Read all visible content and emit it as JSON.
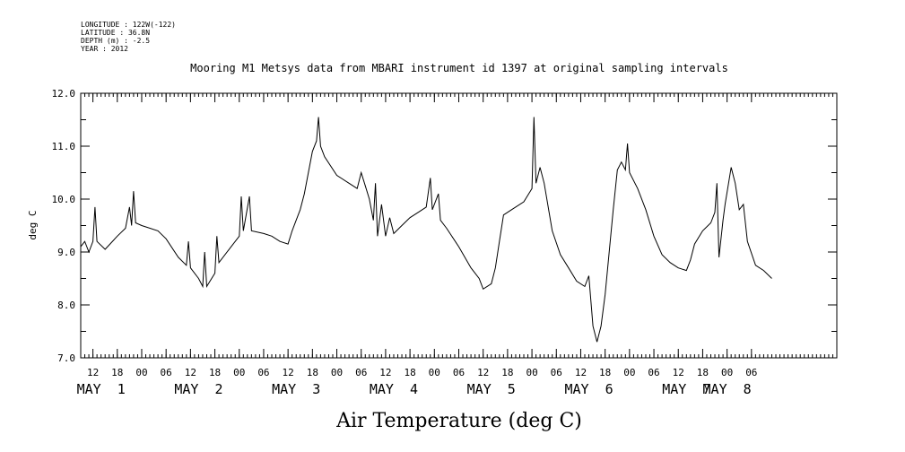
{
  "chart_data": {
    "type": "line",
    "metadata": [
      "LONGITUDE : 122W(-122)",
      "LATITUDE : 36.8N",
      "DEPTH (m) : -2.5",
      "YEAR : 2012"
    ],
    "title": "Mooring M1 Metsys data from MBARI instrument id 1397 at original sampling intervals",
    "xlabel": "Air Temperature (deg C)",
    "ylabel": "deg C",
    "ylim": [
      7.0,
      12.0
    ],
    "yticks": [
      "7.0",
      "8.0",
      "9.0",
      "10.0",
      "11.0",
      "12.0"
    ],
    "xlim": [
      "2012-04-30T09:00",
      "2012-05-08T03:00"
    ],
    "hour_ticks": [
      {
        "t": "2012-04-30T12:00",
        "label": "12"
      },
      {
        "t": "2012-04-30T18:00",
        "label": "18"
      },
      {
        "t": "2012-05-01T00:00",
        "label": "00"
      },
      {
        "t": "2012-05-01T06:00",
        "label": "06"
      },
      {
        "t": "2012-05-01T12:00",
        "label": "12"
      },
      {
        "t": "2012-05-01T18:00",
        "label": "18"
      },
      {
        "t": "2012-05-02T00:00",
        "label": "00"
      },
      {
        "t": "2012-05-02T06:00",
        "label": "06"
      },
      {
        "t": "2012-05-02T12:00",
        "label": "12"
      },
      {
        "t": "2012-05-02T18:00",
        "label": "18"
      },
      {
        "t": "2012-05-03T00:00",
        "label": "00"
      },
      {
        "t": "2012-05-03T06:00",
        "label": "06"
      },
      {
        "t": "2012-05-03T12:00",
        "label": "12"
      },
      {
        "t": "2012-05-03T18:00",
        "label": "18"
      },
      {
        "t": "2012-05-04T00:00",
        "label": "00"
      },
      {
        "t": "2012-05-04T06:00",
        "label": "06"
      },
      {
        "t": "2012-05-04T12:00",
        "label": "12"
      },
      {
        "t": "2012-05-04T18:00",
        "label": "18"
      },
      {
        "t": "2012-05-05T00:00",
        "label": "00"
      },
      {
        "t": "2012-05-05T06:00",
        "label": "06"
      },
      {
        "t": "2012-05-05T12:00",
        "label": "12"
      },
      {
        "t": "2012-05-05T18:00",
        "label": "18"
      },
      {
        "t": "2012-05-06T00:00",
        "label": "00"
      },
      {
        "t": "2012-05-06T06:00",
        "label": "06"
      },
      {
        "t": "2012-05-06T12:00",
        "label": "12"
      },
      {
        "t": "2012-05-06T18:00",
        "label": "18"
      },
      {
        "t": "2012-05-07T00:00",
        "label": "00"
      },
      {
        "t": "2012-05-07T06:00",
        "label": "06"
      }
    ],
    "day_labels": [
      {
        "t": "2012-04-30T14:00",
        "label": "MAY  1"
      },
      {
        "t": "2012-05-01T14:00",
        "label": "MAY  2"
      },
      {
        "t": "2012-05-02T14:00",
        "label": "MAY  3"
      },
      {
        "t": "2012-05-03T14:00",
        "label": "MAY  4"
      },
      {
        "t": "2012-05-04T14:00",
        "label": "MAY  5"
      },
      {
        "t": "2012-05-05T14:00",
        "label": "MAY  6"
      },
      {
        "t": "2012-05-06T14:00",
        "label": "MAY  7"
      },
      {
        "t": "2012-05-07T00:00",
        "label": "MAY  8"
      }
    ],
    "series": [
      {
        "points": [
          [
            "2012-04-30T09:00",
            9.1
          ],
          [
            "2012-04-30T10:00",
            9.2
          ],
          [
            "2012-04-30T11:00",
            9.0
          ],
          [
            "2012-04-30T12:00",
            9.2
          ],
          [
            "2012-04-30T12:30",
            9.85
          ],
          [
            "2012-04-30T13:00",
            9.2
          ],
          [
            "2012-04-30T15:00",
            9.05
          ],
          [
            "2012-04-30T18:00",
            9.3
          ],
          [
            "2012-04-30T20:00",
            9.45
          ],
          [
            "2012-04-30T21:00",
            9.85
          ],
          [
            "2012-04-30T21:30",
            9.5
          ],
          [
            "2012-04-30T22:00",
            10.15
          ],
          [
            "2012-04-30T22:30",
            9.55
          ],
          [
            "2012-05-01T00:00",
            9.5
          ],
          [
            "2012-05-01T04:00",
            9.4
          ],
          [
            "2012-05-01T06:00",
            9.25
          ],
          [
            "2012-05-01T09:00",
            8.9
          ],
          [
            "2012-05-01T11:00",
            8.75
          ],
          [
            "2012-05-01T11:30",
            9.2
          ],
          [
            "2012-05-01T12:00",
            8.7
          ],
          [
            "2012-05-01T14:00",
            8.5
          ],
          [
            "2012-05-01T15:00",
            8.35
          ],
          [
            "2012-05-01T15:30",
            9.0
          ],
          [
            "2012-05-01T16:00",
            8.35
          ],
          [
            "2012-05-01T18:00",
            8.6
          ],
          [
            "2012-05-01T18:30",
            9.3
          ],
          [
            "2012-05-01T19:00",
            8.8
          ],
          [
            "2012-05-01T22:00",
            9.1
          ],
          [
            "2012-05-02T00:00",
            9.3
          ],
          [
            "2012-05-02T00:30",
            10.05
          ],
          [
            "2012-05-02T01:00",
            9.4
          ],
          [
            "2012-05-02T02:30",
            10.05
          ],
          [
            "2012-05-02T03:00",
            9.4
          ],
          [
            "2012-05-02T06:00",
            9.35
          ],
          [
            "2012-05-02T08:00",
            9.3
          ],
          [
            "2012-05-02T10:00",
            9.2
          ],
          [
            "2012-05-02T12:00",
            9.15
          ],
          [
            "2012-05-02T13:00",
            9.4
          ],
          [
            "2012-05-02T14:00",
            9.6
          ],
          [
            "2012-05-02T15:00",
            9.8
          ],
          [
            "2012-05-02T16:00",
            10.1
          ],
          [
            "2012-05-02T17:00",
            10.5
          ],
          [
            "2012-05-02T18:00",
            10.9
          ],
          [
            "2012-05-02T19:00",
            11.1
          ],
          [
            "2012-05-02T19:30",
            11.55
          ],
          [
            "2012-05-02T20:00",
            11.0
          ],
          [
            "2012-05-02T21:00",
            10.8
          ],
          [
            "2012-05-03T00:00",
            10.45
          ],
          [
            "2012-05-03T03:00",
            10.3
          ],
          [
            "2012-05-03T05:00",
            10.2
          ],
          [
            "2012-05-03T06:00",
            10.5
          ],
          [
            "2012-05-03T07:00",
            10.25
          ],
          [
            "2012-05-03T08:00",
            10.0
          ],
          [
            "2012-05-03T09:00",
            9.6
          ],
          [
            "2012-05-03T09:30",
            10.3
          ],
          [
            "2012-05-03T10:00",
            9.3
          ],
          [
            "2012-05-03T11:00",
            9.9
          ],
          [
            "2012-05-03T12:00",
            9.3
          ],
          [
            "2012-05-03T13:00",
            9.65
          ],
          [
            "2012-05-03T14:00",
            9.35
          ],
          [
            "2012-05-03T16:00",
            9.5
          ],
          [
            "2012-05-03T18:00",
            9.65
          ],
          [
            "2012-05-03T20:00",
            9.75
          ],
          [
            "2012-05-03T22:00",
            9.85
          ],
          [
            "2012-05-03T23:00",
            10.4
          ],
          [
            "2012-05-03T23:30",
            9.8
          ],
          [
            "2012-05-04T01:00",
            10.1
          ],
          [
            "2012-05-04T01:30",
            9.6
          ],
          [
            "2012-05-04T03:00",
            9.45
          ],
          [
            "2012-05-04T06:00",
            9.1
          ],
          [
            "2012-05-04T09:00",
            8.7
          ],
          [
            "2012-05-04T11:00",
            8.5
          ],
          [
            "2012-05-04T12:00",
            8.3
          ],
          [
            "2012-05-04T14:00",
            8.4
          ],
          [
            "2012-05-04T15:00",
            8.7
          ],
          [
            "2012-05-04T16:00",
            9.2
          ],
          [
            "2012-05-04T17:00",
            9.7
          ],
          [
            "2012-05-04T19:00",
            9.8
          ],
          [
            "2012-05-04T22:00",
            9.95
          ],
          [
            "2012-05-05T00:00",
            10.2
          ],
          [
            "2012-05-05T00:30",
            11.55
          ],
          [
            "2012-05-05T01:00",
            10.3
          ],
          [
            "2012-05-05T02:00",
            10.6
          ],
          [
            "2012-05-05T03:00",
            10.3
          ],
          [
            "2012-05-05T05:00",
            9.4
          ],
          [
            "2012-05-05T07:00",
            8.95
          ],
          [
            "2012-05-05T09:00",
            8.7
          ],
          [
            "2012-05-05T11:00",
            8.45
          ],
          [
            "2012-05-05T13:00",
            8.35
          ],
          [
            "2012-05-05T14:00",
            8.55
          ],
          [
            "2012-05-05T15:00",
            7.6
          ],
          [
            "2012-05-05T16:00",
            7.3
          ],
          [
            "2012-05-05T17:00",
            7.6
          ],
          [
            "2012-05-05T18:00",
            8.2
          ],
          [
            "2012-05-05T19:00",
            9.0
          ],
          [
            "2012-05-05T20:00",
            9.8
          ],
          [
            "2012-05-05T21:00",
            10.55
          ],
          [
            "2012-05-05T22:00",
            10.7
          ],
          [
            "2012-05-05T23:00",
            10.55
          ],
          [
            "2012-05-05T23:30",
            11.05
          ],
          [
            "2012-05-06T00:00",
            10.5
          ],
          [
            "2012-05-06T02:00",
            10.2
          ],
          [
            "2012-05-06T04:00",
            9.8
          ],
          [
            "2012-05-06T06:00",
            9.3
          ],
          [
            "2012-05-06T08:00",
            8.95
          ],
          [
            "2012-05-06T10:00",
            8.8
          ],
          [
            "2012-05-06T12:00",
            8.7
          ],
          [
            "2012-05-06T14:00",
            8.65
          ],
          [
            "2012-05-06T15:00",
            8.85
          ],
          [
            "2012-05-06T16:00",
            9.15
          ],
          [
            "2012-05-06T18:00",
            9.4
          ],
          [
            "2012-05-06T20:00",
            9.55
          ],
          [
            "2012-05-06T21:00",
            9.75
          ],
          [
            "2012-05-06T21:30",
            10.3
          ],
          [
            "2012-05-06T22:00",
            8.9
          ],
          [
            "2012-05-06T23:00",
            9.6
          ],
          [
            "2012-05-06T23:30",
            9.9
          ],
          [
            "2012-05-07T01:00",
            10.6
          ],
          [
            "2012-05-07T02:00",
            10.3
          ],
          [
            "2012-05-07T03:00",
            9.8
          ],
          [
            "2012-05-07T04:00",
            9.9
          ],
          [
            "2012-05-07T05:00",
            9.2
          ],
          [
            "2012-05-07T07:00",
            8.75
          ],
          [
            "2012-05-07T09:00",
            8.65
          ],
          [
            "2012-05-07T11:00",
            8.5
          ]
        ]
      }
    ]
  }
}
